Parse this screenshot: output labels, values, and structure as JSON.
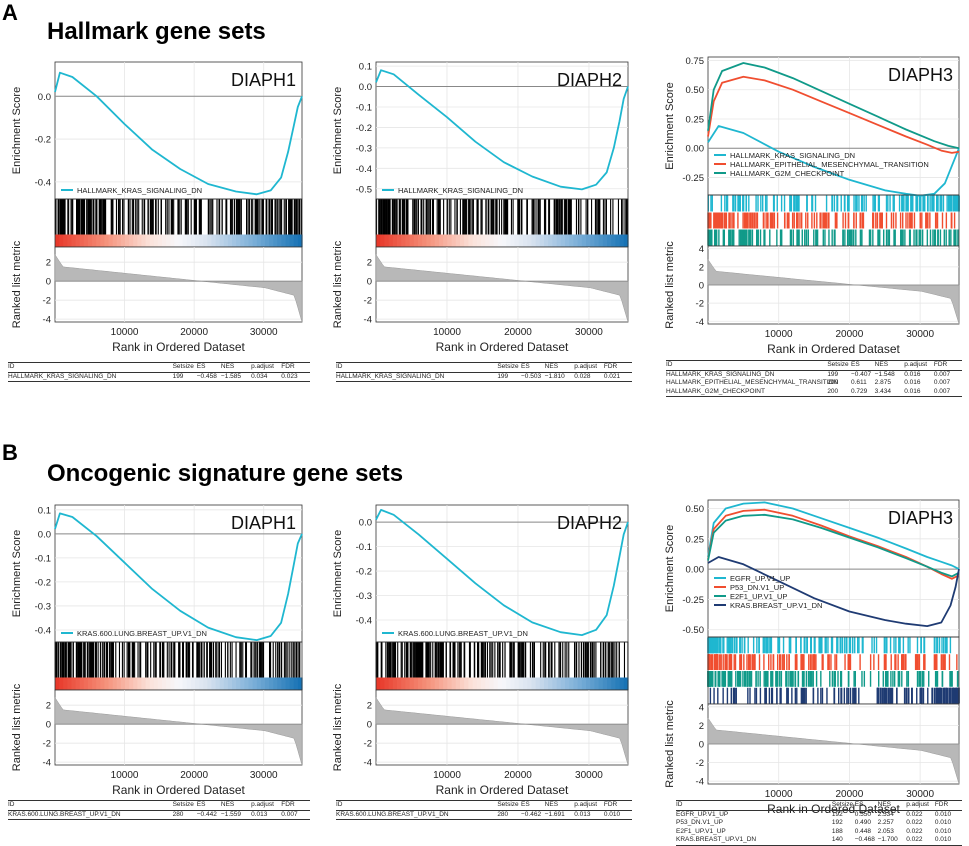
{
  "figure": {
    "panels": [
      {
        "letter": "A",
        "title": "Hallmark gene sets"
      },
      {
        "letter": "B",
        "title": "Oncogenic signature gene sets"
      }
    ]
  },
  "shared_axes": {
    "xlabel": "Rank in Ordered Dataset",
    "ylabel_top": "Enrichment Score",
    "ylabel_bottom": "Ranked list metric",
    "x_range": [
      0,
      35500
    ],
    "x_ticks": [
      10000,
      20000,
      30000
    ],
    "x_tick_labels": [
      "10000",
      "20000",
      "30000"
    ],
    "metric_range": [
      -4.3,
      4.3
    ],
    "metric_ticks": [
      -4,
      -2,
      0,
      2,
      4
    ],
    "table_headers": [
      "ID",
      "Setsize",
      "ES",
      "NES",
      "p.adjust",
      "FDR"
    ]
  },
  "chart_data": [
    {
      "type": "line",
      "section": "A",
      "gene": "DIAPH1",
      "ylim": [
        -0.48,
        0.16
      ],
      "yticks": [
        0.0,
        -0.2,
        -0.4
      ],
      "ytick_labels": [
        "0.0",
        "-0.2",
        "-0.4"
      ],
      "metric_ticks": [
        2,
        0,
        -2,
        -4
      ],
      "metric_ylim": [
        -4.3,
        3.6
      ],
      "legend_position": "bottom-left",
      "bands": "gradient",
      "heat": true,
      "series": [
        {
          "name": "HALLMARK_KRAS_SIGNALING_DN",
          "color": "#1fb7d0",
          "x": [
            0,
            700,
            2500,
            6000,
            10000,
            14000,
            18000,
            22000,
            26000,
            29000,
            31000,
            32500,
            33500,
            34300,
            34900,
            35500
          ],
          "y": [
            0.02,
            0.11,
            0.09,
            0.0,
            -0.13,
            -0.25,
            -0.34,
            -0.41,
            -0.445,
            -0.458,
            -0.44,
            -0.38,
            -0.26,
            -0.14,
            -0.05,
            0.0
          ]
        }
      ],
      "table": {
        "rows": [
          [
            "HALLMARK_KRAS_SIGNALING_DN",
            "199",
            "−0.458",
            "−1.585",
            "0.034",
            "0.023"
          ]
        ]
      }
    },
    {
      "type": "line",
      "section": "A",
      "gene": "DIAPH2",
      "ylim": [
        -0.55,
        0.12
      ],
      "yticks": [
        0.1,
        0.0,
        -0.1,
        -0.2,
        -0.3,
        -0.4,
        -0.5
      ],
      "ytick_labels": [
        "0.1",
        "0.0",
        "-0.1",
        "-0.2",
        "-0.3",
        "-0.4",
        "-0.5"
      ],
      "metric_ticks": [
        2,
        0,
        -2,
        -4
      ],
      "metric_ylim": [
        -4.3,
        3.6
      ],
      "legend_position": "bottom-left",
      "bands": "gradient",
      "heat": true,
      "series": [
        {
          "name": "HALLMARK_KRAS_SIGNALING_DN",
          "color": "#1fb7d0",
          "x": [
            0,
            700,
            2500,
            6000,
            10000,
            14000,
            18000,
            22000,
            26000,
            29000,
            31000,
            32500,
            33500,
            34300,
            34900,
            35500
          ],
          "y": [
            0.02,
            0.08,
            0.06,
            -0.04,
            -0.15,
            -0.27,
            -0.37,
            -0.44,
            -0.49,
            -0.503,
            -0.48,
            -0.42,
            -0.3,
            -0.17,
            -0.06,
            0.0
          ]
        }
      ],
      "table": {
        "rows": [
          [
            "HALLMARK_KRAS_SIGNALING_DN",
            "199",
            "−0.503",
            "−1.810",
            "0.028",
            "0.021"
          ]
        ]
      }
    },
    {
      "type": "line",
      "section": "A",
      "gene": "DIAPH3",
      "ylim": [
        -0.4,
        0.78
      ],
      "yticks": [
        0.75,
        0.5,
        0.25,
        0.0,
        -0.25
      ],
      "ytick_labels": [
        "0.75",
        "0.50",
        "0.25",
        "0.00",
        "-0.25"
      ],
      "metric_ticks": [
        4,
        2,
        0,
        -2,
        -4
      ],
      "metric_ylim": [
        -4.3,
        4.3
      ],
      "legend_position": "bottom-left",
      "bands": "stacked",
      "heat": false,
      "series": [
        {
          "name": "HALLMARK_KRAS_SIGNALING_DN",
          "color": "#1fb7d0",
          "x": [
            0,
            1500,
            5000,
            10000,
            15000,
            20000,
            25000,
            28000,
            30000,
            32000,
            33500,
            34500,
            35500
          ],
          "y": [
            0.05,
            0.19,
            0.13,
            -0.03,
            -0.16,
            -0.27,
            -0.36,
            -0.39,
            -0.407,
            -0.39,
            -0.3,
            -0.15,
            0.0
          ]
        },
        {
          "name": "HALLMARK_EPITHELIAL_MESENCHYMAL_TRANSITION",
          "color": "#f04e30",
          "x": [
            0,
            800,
            2000,
            5000,
            8000,
            12000,
            16000,
            20000,
            24000,
            28000,
            31000,
            33000,
            34500,
            35500
          ],
          "y": [
            0.1,
            0.4,
            0.56,
            0.611,
            0.58,
            0.5,
            0.4,
            0.3,
            0.2,
            0.1,
            0.03,
            -0.02,
            -0.04,
            -0.03
          ]
        },
        {
          "name": "HALLMARK_G2M_CHECKPOINT",
          "color": "#109a89",
          "x": [
            0,
            800,
            2000,
            5000,
            8000,
            12000,
            16000,
            20000,
            24000,
            28000,
            32000,
            34000,
            35500
          ],
          "y": [
            0.15,
            0.5,
            0.66,
            0.729,
            0.69,
            0.6,
            0.49,
            0.38,
            0.27,
            0.16,
            0.06,
            0.02,
            0.0
          ]
        }
      ],
      "table": {
        "rows": [
          [
            "HALLMARK_KRAS_SIGNALING_DN",
            "199",
            "−0.407",
            "−1.548",
            "0.016",
            "0.007"
          ],
          [
            "HALLMARK_EPITHELIAL_MESENCHYMAL_TRANSITION",
            "200",
            "0.611",
            "2.875",
            "0.016",
            "0.007"
          ],
          [
            "HALLMARK_G2M_CHECKPOINT",
            "200",
            "0.729",
            "3.434",
            "0.016",
            "0.007"
          ]
        ]
      }
    },
    {
      "type": "line",
      "section": "B",
      "gene": "DIAPH1",
      "ylim": [
        -0.45,
        0.12
      ],
      "yticks": [
        0.1,
        0.0,
        -0.1,
        -0.2,
        -0.3,
        -0.4
      ],
      "ytick_labels": [
        "0.1",
        "0.0",
        "-0.1",
        "-0.2",
        "-0.3",
        "-0.4"
      ],
      "metric_ticks": [
        2,
        0,
        -2,
        -4
      ],
      "metric_ylim": [
        -4.3,
        3.6
      ],
      "legend_position": "bottom-left",
      "bands": "gradient",
      "heat": true,
      "series": [
        {
          "name": "KRAS.600.LUNG.BREAST_UP.V1_DN",
          "color": "#1fb7d0",
          "x": [
            0,
            700,
            2500,
            6000,
            10000,
            14000,
            18000,
            22000,
            26000,
            29000,
            31000,
            32500,
            33500,
            34300,
            34900,
            35500
          ],
          "y": [
            0.02,
            0.085,
            0.07,
            -0.01,
            -0.12,
            -0.23,
            -0.32,
            -0.39,
            -0.43,
            -0.442,
            -0.425,
            -0.37,
            -0.25,
            -0.13,
            -0.04,
            0.0
          ]
        }
      ],
      "table": {
        "rows": [
          [
            "KRAS.600.LUNG.BREAST_UP.V1_DN",
            "280",
            "−0.442",
            "−1.559",
            "0.013",
            "0.007"
          ]
        ]
      }
    },
    {
      "type": "line",
      "section": "B",
      "gene": "DIAPH2",
      "ylim": [
        -0.49,
        0.07
      ],
      "yticks": [
        0.0,
        -0.1,
        -0.2,
        -0.3,
        -0.4
      ],
      "ytick_labels": [
        "0.0",
        "-0.1",
        "-0.2",
        "-0.3",
        "-0.4"
      ],
      "metric_ticks": [
        2,
        0,
        -2,
        -4
      ],
      "metric_ylim": [
        -4.3,
        3.6
      ],
      "legend_position": "bottom-left",
      "bands": "gradient",
      "heat": true,
      "series": [
        {
          "name": "KRAS.600.LUNG.BREAST_UP.V1_DN",
          "color": "#1fb7d0",
          "x": [
            0,
            700,
            2500,
            6000,
            10000,
            14000,
            18000,
            22000,
            26000,
            29000,
            31000,
            32500,
            33500,
            34300,
            34900,
            35500
          ],
          "y": [
            0.01,
            0.05,
            0.03,
            -0.05,
            -0.15,
            -0.25,
            -0.34,
            -0.41,
            -0.45,
            -0.462,
            -0.44,
            -0.38,
            -0.26,
            -0.14,
            -0.05,
            0.0
          ]
        }
      ],
      "table": {
        "rows": [
          [
            "KRAS.600.LUNG.BREAST_UP.V1_DN",
            "280",
            "−0.462",
            "−1.691",
            "0.013",
            "0.010"
          ]
        ]
      }
    },
    {
      "type": "line",
      "section": "B",
      "gene": "DIAPH3",
      "ylim": [
        -0.56,
        0.57
      ],
      "yticks": [
        0.5,
        0.25,
        0.0,
        -0.25,
        -0.5
      ],
      "ytick_labels": [
        "0.50",
        "0.25",
        "0.00",
        "-0.25",
        "-0.50"
      ],
      "metric_ticks": [
        4,
        2,
        0,
        -2,
        -4
      ],
      "metric_ylim": [
        -4.3,
        4.3
      ],
      "legend_position": "bottom-left",
      "bands": "stacked",
      "heat": false,
      "series": [
        {
          "name": "EGFR_UP.V1_UP",
          "color": "#1fb7d0",
          "x": [
            0,
            800,
            2500,
            5000,
            8000,
            12000,
            16000,
            20000,
            24000,
            28000,
            31000,
            33000,
            34500,
            35500
          ],
          "y": [
            0.1,
            0.38,
            0.5,
            0.54,
            0.55,
            0.5,
            0.42,
            0.34,
            0.26,
            0.17,
            0.1,
            0.06,
            0.03,
            0.0
          ]
        },
        {
          "name": "P53_DN.V1_UP",
          "color": "#f04e30",
          "x": [
            0,
            800,
            2500,
            5000,
            8000,
            12000,
            16000,
            20000,
            24000,
            28000,
            31000,
            33000,
            34500,
            35500
          ],
          "y": [
            0.08,
            0.33,
            0.44,
            0.48,
            0.49,
            0.44,
            0.36,
            0.27,
            0.19,
            0.1,
            0.02,
            -0.04,
            -0.08,
            -0.05
          ]
        },
        {
          "name": "E2F1_UP.V1_UP",
          "color": "#109a89",
          "x": [
            0,
            800,
            2500,
            5000,
            8000,
            12000,
            16000,
            20000,
            24000,
            28000,
            31000,
            33000,
            34500,
            35500
          ],
          "y": [
            0.07,
            0.3,
            0.4,
            0.44,
            0.448,
            0.41,
            0.34,
            0.26,
            0.18,
            0.09,
            0.02,
            -0.03,
            -0.06,
            -0.03
          ]
        },
        {
          "name": "KRAS.BREAST_UP.V1_DN",
          "color": "#1f3b73",
          "x": [
            0,
            1500,
            5000,
            10000,
            15000,
            20000,
            25000,
            28000,
            31000,
            33000,
            34300,
            35000,
            35500
          ],
          "y": [
            0.05,
            0.1,
            0.04,
            -0.1,
            -0.24,
            -0.35,
            -0.42,
            -0.45,
            -0.47,
            -0.44,
            -0.3,
            -0.15,
            0.0
          ]
        }
      ],
      "table": {
        "rows": [
          [
            "EGFR_UP.V1_UP",
            "192",
            "0.550",
            "2.534",
            "0.022",
            "0.010"
          ],
          [
            "P53_DN.V1_UP",
            "192",
            "0.490",
            "2.257",
            "0.022",
            "0.010"
          ],
          [
            "E2F1_UP.V1_UP",
            "188",
            "0.448",
            "2.053",
            "0.022",
            "0.010"
          ],
          [
            "KRAS.BREAST_UP.V1_DN",
            "140",
            "−0.468",
            "−1.700",
            "0.022",
            "0.010"
          ]
        ]
      }
    }
  ]
}
